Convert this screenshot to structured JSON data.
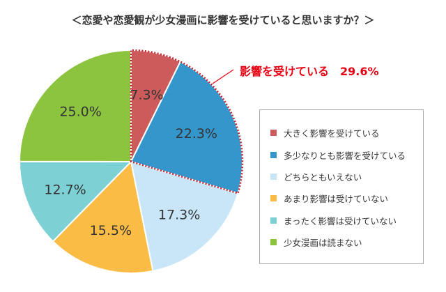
{
  "title": "＜恋愛や恋愛観が少女漫画に影響を受けていると思いますか？＞",
  "callout": {
    "label": "影響を受けている",
    "value": "29.6%"
  },
  "colors": {
    "highlight_border": "#c4212e",
    "callout_text": "#e60012",
    "legend_border": "#aaaaaa"
  },
  "chart_data": {
    "type": "pie",
    "title": "",
    "start_angle_deg": 0,
    "direction": "clockwise",
    "legend_placement": "right",
    "slices": [
      {
        "name": "大きく影響を受けている",
        "value": 7.3,
        "label": "7.3%",
        "color": "#cd5b5b",
        "label_color": "#ffffff"
      },
      {
        "name": "多少なりとも影響を受けている",
        "value": 22.3,
        "label": "22.3%",
        "color": "#3596cc",
        "label_color": "#ffffff"
      },
      {
        "name": "どちらともいえない",
        "value": 17.3,
        "label": "17.3%",
        "color": "#c9e6f9",
        "label_color": "#333333"
      },
      {
        "name": "あまり影響は受けていない",
        "value": 15.5,
        "label": "15.5%",
        "color": "#fbbc45",
        "label_color": "#333333"
      },
      {
        "name": "まったく影響は受けていない",
        "value": 12.7,
        "label": "12.7%",
        "color": "#7dd0d3",
        "label_color": "#333333"
      },
      {
        "name": "少女漫画は読まない",
        "value": 25.0,
        "label": "25.0%",
        "color": "#8dc43f",
        "label_color": "#333333"
      }
    ],
    "highlighted_slices": [
      0,
      1
    ]
  }
}
